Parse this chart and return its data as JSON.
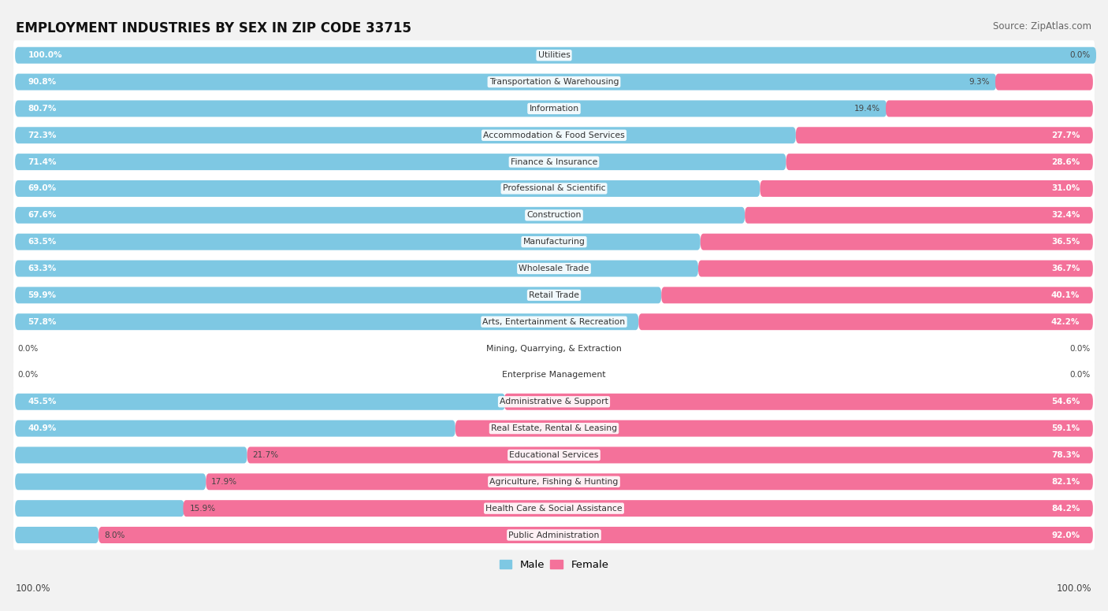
{
  "title": "EMPLOYMENT INDUSTRIES BY SEX IN ZIP CODE 33715",
  "source": "Source: ZipAtlas.com",
  "male_color": "#7EC8E3",
  "female_color": "#F4719A",
  "bg_color": "#F2F2F2",
  "row_bg_color": "#FFFFFF",
  "industries": [
    {
      "name": "Utilities",
      "male": 100.0,
      "female": 0.0
    },
    {
      "name": "Transportation & Warehousing",
      "male": 90.8,
      "female": 9.3
    },
    {
      "name": "Information",
      "male": 80.7,
      "female": 19.4
    },
    {
      "name": "Accommodation & Food Services",
      "male": 72.3,
      "female": 27.7
    },
    {
      "name": "Finance & Insurance",
      "male": 71.4,
      "female": 28.6
    },
    {
      "name": "Professional & Scientific",
      "male": 69.0,
      "female": 31.0
    },
    {
      "name": "Construction",
      "male": 67.6,
      "female": 32.4
    },
    {
      "name": "Manufacturing",
      "male": 63.5,
      "female": 36.5
    },
    {
      "name": "Wholesale Trade",
      "male": 63.3,
      "female": 36.7
    },
    {
      "name": "Retail Trade",
      "male": 59.9,
      "female": 40.1
    },
    {
      "name": "Arts, Entertainment & Recreation",
      "male": 57.8,
      "female": 42.2
    },
    {
      "name": "Mining, Quarrying, & Extraction",
      "male": 0.0,
      "female": 0.0
    },
    {
      "name": "Enterprise Management",
      "male": 0.0,
      "female": 0.0
    },
    {
      "name": "Administrative & Support",
      "male": 45.5,
      "female": 54.6
    },
    {
      "name": "Real Estate, Rental & Leasing",
      "male": 40.9,
      "female": 59.1
    },
    {
      "name": "Educational Services",
      "male": 21.7,
      "female": 78.3
    },
    {
      "name": "Agriculture, Fishing & Hunting",
      "male": 17.9,
      "female": 82.1
    },
    {
      "name": "Health Care & Social Assistance",
      "male": 15.9,
      "female": 84.2
    },
    {
      "name": "Public Administration",
      "male": 8.0,
      "female": 92.0
    }
  ]
}
